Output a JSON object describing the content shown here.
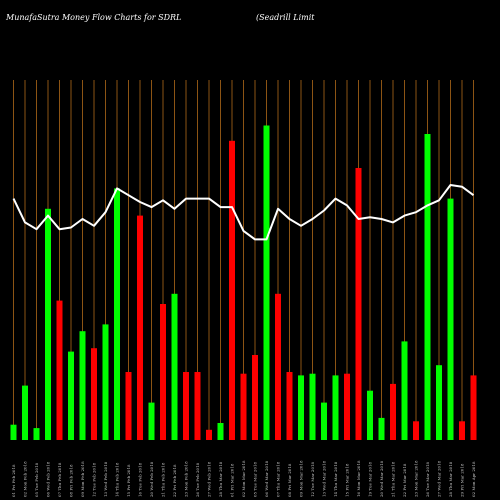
{
  "header": {
    "left": "MunafaSutra  Money Flow  Charts for SDRL",
    "right": "(Seadrill Limit"
  },
  "chart_data": {
    "type": "bar",
    "title": "MunafaSutra  Money Flow  Charts for SDRL",
    "subtitle": "(Seadrill Limit",
    "xlabel": "",
    "ylabel": "",
    "ylim": [
      0,
      100
    ],
    "grid": true,
    "categories": [
      "01 Fri Feb 2018",
      "02 Mon Feb 2018",
      "05 Tue Feb 2018",
      "06 Wed Feb 2018",
      "07 Thu Feb 2018",
      "08 Fri Feb 2018",
      "09 Mon Feb 2018",
      "12 Tue Feb 2018",
      "13 Wed Feb 2018",
      "14 Thu Feb 2018",
      "15 Fri Feb 2018",
      "16 Tue Feb 2018",
      "20 Wed Feb 2018",
      "21 Thu Feb 2018",
      "22 Fri Feb 2018",
      "23 Mon Feb 2018",
      "26 Tue Feb 2018",
      "27 Wed Feb 2018",
      "28 Thu Mar 2018",
      "01 Fri Mar 2018",
      "02 Mon Mar 2018",
      "05 Tue Mar 2018",
      "06 Wed Mar 2018",
      "07 Thu Mar 2018",
      "08 Fri Mar 2018",
      "09 Mon Mar 2018",
      "12 Tue Mar 2018",
      "13 Wed Mar 2018",
      "14 Thu Mar 2018",
      "15 Fri Mar 2018",
      "16 Mon Mar 2018",
      "19 Tue Mar 2018",
      "20 Wed Mar 2018",
      "21 Thu Mar 2018",
      "22 Fri Mar 2018",
      "23 Mon Mar 2018",
      "26 Tue Mar 2018",
      "27 Wed Mar 2018",
      "28 Thu Mar 2018",
      "29 Fri Mar 2018",
      "02 Mon Apr 2018"
    ],
    "series": [
      {
        "values": [
          4.5,
          16,
          3.5,
          68,
          41,
          26,
          32,
          27,
          34,
          74,
          20,
          66,
          11,
          40,
          43,
          20,
          20,
          3,
          5,
          88,
          19.5,
          25,
          92.5,
          43,
          20,
          19,
          19.5,
          11,
          19,
          19.5,
          80,
          14.5,
          6.5,
          16.5,
          29,
          5.5,
          90,
          22,
          71,
          5.5,
          19
        ],
        "colors": [
          "green",
          "green",
          "green",
          "green",
          "red",
          "green",
          "green",
          "red",
          "green",
          "green",
          "red",
          "red",
          "green",
          "red",
          "green",
          "red",
          "red",
          "red",
          "green",
          "red",
          "red",
          "red",
          "green",
          "red",
          "red",
          "green",
          "green",
          "green",
          "green",
          "red",
          "red",
          "green",
          "green",
          "red",
          "green",
          "red",
          "green",
          "green",
          "green",
          "red",
          "red"
        ]
      },
      {
        "values": [
          71,
          64,
          62,
          66,
          62,
          62.5,
          65,
          63,
          67,
          74,
          72,
          70,
          68.5,
          70.5,
          68,
          71,
          71,
          71,
          68.5,
          68.5,
          61.5,
          59,
          59,
          68,
          65,
          63,
          65,
          67.5,
          71,
          69,
          65,
          65.5,
          65,
          64,
          66,
          67,
          69,
          70.5,
          75,
          74.5,
          72
        ]
      }
    ],
    "colors": {
      "green": "#00ff00",
      "red": "#ff0000",
      "line": "#ffffff",
      "grid": "#b06a1a",
      "background": "#000000"
    }
  }
}
